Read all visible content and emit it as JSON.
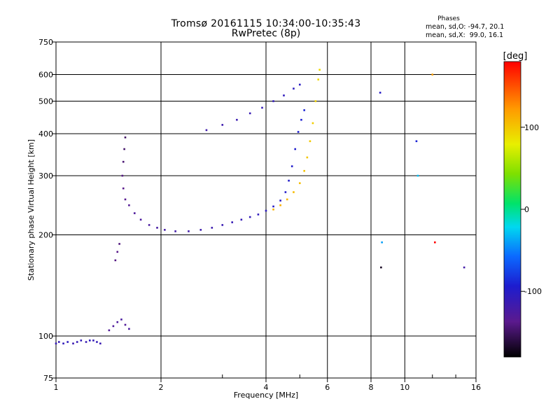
{
  "title": "Tromsø 20161115 10:34:00-10:35:43",
  "subtitle": "RwPretec (8p)",
  "stats": {
    "heading": "Phases",
    "o_line": "mean, sd,O: -94.7, 20.1",
    "x_line": "mean, sd,X:  99.0, 16.1"
  },
  "chart_data": {
    "type": "scatter",
    "xlabel": "Frequency [MHz]",
    "ylabel": "Stationary phase Virtual Height [km]",
    "xscale": "log",
    "yscale": "log",
    "xlim": [
      1,
      16
    ],
    "ylim": [
      75,
      750
    ],
    "xticks": [
      1,
      2,
      4,
      6,
      8,
      10,
      16
    ],
    "yticks": [
      75,
      100,
      200,
      300,
      400,
      500,
      600,
      750
    ],
    "colorbar": {
      "label": "[deg]",
      "range": [
        -180,
        180
      ],
      "ticks": [
        100,
        0,
        -100
      ]
    },
    "series": [
      {
        "points": [
          [
            1.0,
            95,
            -110
          ],
          [
            1.02,
            96,
            -112
          ],
          [
            1.05,
            95,
            -108
          ],
          [
            1.08,
            96,
            -105
          ],
          [
            1.12,
            95,
            -115
          ],
          [
            1.15,
            96,
            -110
          ],
          [
            1.18,
            97,
            -108
          ],
          [
            1.22,
            96,
            -112
          ],
          [
            1.25,
            97,
            -105
          ],
          [
            1.28,
            97,
            -110
          ],
          [
            1.31,
            96,
            -108
          ],
          [
            1.34,
            95,
            -114
          ],
          [
            1.42,
            104,
            -130
          ],
          [
            1.46,
            107,
            -128
          ],
          [
            1.5,
            110,
            -126
          ],
          [
            1.54,
            112,
            -124
          ],
          [
            1.58,
            108,
            -130
          ],
          [
            1.62,
            105,
            -125
          ],
          [
            1.48,
            168,
            -140
          ],
          [
            1.5,
            178,
            -138
          ],
          [
            1.52,
            188,
            -142
          ],
          [
            1.58,
            390,
            -150
          ],
          [
            1.57,
            360,
            -148
          ],
          [
            1.56,
            330,
            -145
          ],
          [
            1.55,
            300,
            -140
          ],
          [
            1.56,
            275,
            -138
          ],
          [
            1.58,
            255,
            -135
          ],
          [
            1.62,
            245,
            -132
          ],
          [
            1.68,
            232,
            -128
          ],
          [
            1.75,
            222,
            -126
          ],
          [
            1.85,
            214,
            -125
          ],
          [
            1.95,
            210,
            -123
          ],
          [
            2.05,
            207,
            -121
          ],
          [
            2.2,
            205,
            -120
          ],
          [
            2.4,
            205,
            -118
          ],
          [
            2.6,
            207,
            -116
          ],
          [
            2.8,
            210,
            -115
          ],
          [
            3.0,
            214,
            -113
          ],
          [
            3.2,
            218,
            -111
          ],
          [
            3.4,
            222,
            -110
          ],
          [
            3.6,
            226,
            -108
          ],
          [
            3.8,
            230,
            -106
          ],
          [
            4.0,
            236,
            -104
          ],
          [
            4.2,
            243,
            -102
          ],
          [
            4.4,
            253,
            -100
          ],
          [
            4.55,
            268,
            -98
          ],
          [
            4.65,
            290,
            -97
          ],
          [
            4.75,
            320,
            -96
          ],
          [
            4.85,
            360,
            -95
          ],
          [
            4.95,
            405,
            -93
          ],
          [
            5.05,
            440,
            -92
          ],
          [
            5.15,
            470,
            -90
          ],
          [
            2.7,
            410,
            -118
          ],
          [
            3.0,
            425,
            -116
          ],
          [
            3.3,
            440,
            -114
          ],
          [
            3.6,
            460,
            -112
          ],
          [
            3.9,
            478,
            -110
          ],
          [
            4.2,
            500,
            -108
          ],
          [
            4.5,
            520,
            -106
          ],
          [
            4.8,
            545,
            -104
          ],
          [
            5.0,
            560,
            -102
          ],
          [
            4.2,
            238,
            110
          ],
          [
            4.4,
            245,
            112
          ],
          [
            4.6,
            255,
            108
          ],
          [
            4.8,
            268,
            106
          ],
          [
            5.0,
            285,
            104
          ],
          [
            5.15,
            310,
            102
          ],
          [
            5.25,
            340,
            100
          ],
          [
            5.35,
            380,
            98
          ],
          [
            5.45,
            430,
            96
          ],
          [
            5.55,
            500,
            94
          ],
          [
            5.65,
            580,
            92
          ],
          [
            5.7,
            620,
            90
          ],
          [
            8.5,
            530,
            -100
          ],
          [
            8.6,
            190,
            -40
          ],
          [
            8.55,
            160,
            -170
          ],
          [
            10.8,
            380,
            -90
          ],
          [
            10.9,
            300,
            -30
          ],
          [
            12.0,
            600,
            120
          ],
          [
            12.2,
            190,
            180
          ],
          [
            14.8,
            160,
            -120
          ]
        ]
      }
    ]
  }
}
